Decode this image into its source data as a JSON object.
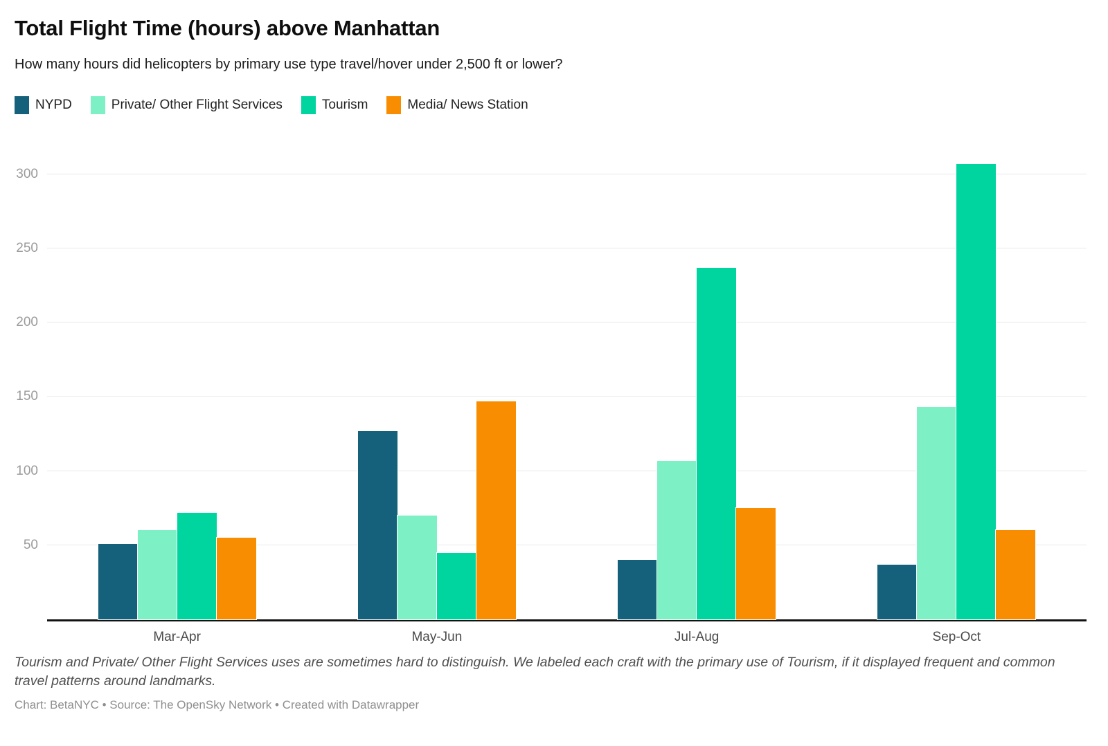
{
  "header": {
    "title": "Total Flight Time (hours) above Manhattan",
    "subtitle": "How many hours did helicopters by primary use type travel/hover under 2,500 ft or lower?"
  },
  "legend": [
    {
      "label": "NYPD",
      "color": "#15607a"
    },
    {
      "label": "Private/ Other Flight Services",
      "color": "#7df0c6"
    },
    {
      "label": "Tourism",
      "color": "#00d5a0"
    },
    {
      "label": "Media/ News Station",
      "color": "#f98d02"
    }
  ],
  "chart_data": {
    "type": "bar",
    "title": "Total Flight Time (hours) above Manhattan",
    "categories": [
      "Mar-Apr",
      "May-Jun",
      "Jul-Aug",
      "Sep-Oct"
    ],
    "series": [
      {
        "name": "NYPD",
        "color": "#15607a",
        "values": [
          51,
          127,
          40,
          37
        ]
      },
      {
        "name": "Private/ Other Flight Services",
        "color": "#7df0c6",
        "values": [
          60,
          70,
          107,
          143
        ]
      },
      {
        "name": "Tourism",
        "color": "#00d5a0",
        "values": [
          72,
          45,
          237,
          307
        ]
      },
      {
        "name": "Media/ News Station",
        "color": "#f98d02",
        "values": [
          55,
          147,
          75,
          60
        ]
      }
    ],
    "xlabel": "",
    "ylabel": "",
    "y_ticks": [
      50,
      100,
      150,
      200,
      250,
      300
    ],
    "ylim": [
      0,
      320
    ],
    "grid": "horizontal",
    "legend_position": "top",
    "grid_color": "#e8e8e8",
    "axis_line_color": "#121212",
    "tick_label_color": "#9b9b9b",
    "category_label_color": "#4a4a4a"
  },
  "footer": {
    "note": "Tourism and Private/ Other Flight Services uses are sometimes hard to distinguish. We labeled each craft with the primary use of Tourism, if it displayed frequent and common travel patterns around landmarks.",
    "credit": "Chart: BetaNYC • Source: The OpenSky Network • Created with Datawrapper"
  }
}
